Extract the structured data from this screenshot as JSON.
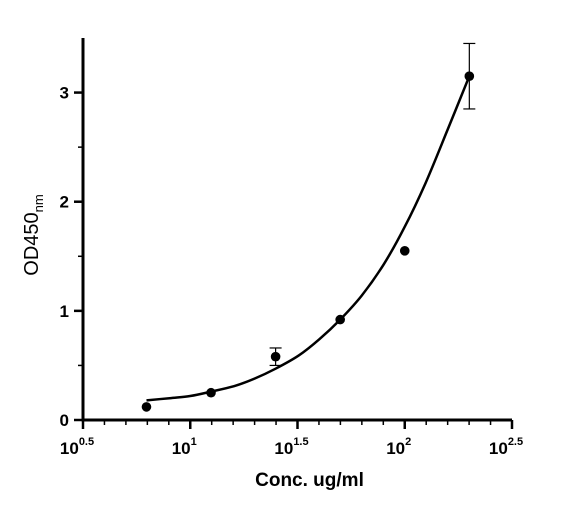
{
  "chart_data": {
    "type": "scatter",
    "title": "",
    "xlabel": "Conc. ug/ml",
    "ylabel": {
      "main": "OD450",
      "sub": "nm"
    },
    "x_scale": "log10",
    "xlim": [
      3.1623,
      316.23
    ],
    "ylim": [
      0,
      3.5
    ],
    "x_ticks": [
      {
        "value": 3.1623,
        "base": "10",
        "exp": "0.5"
      },
      {
        "value": 10,
        "base": "10",
        "exp": "1"
      },
      {
        "value": 31.623,
        "base": "10",
        "exp": "1.5"
      },
      {
        "value": 100,
        "base": "10",
        "exp": "2"
      },
      {
        "value": 316.23,
        "base": "10",
        "exp": "2.5"
      }
    ],
    "y_ticks": [
      {
        "value": 0,
        "label": "0"
      },
      {
        "value": 1,
        "label": "1"
      },
      {
        "value": 2,
        "label": "2"
      },
      {
        "value": 3,
        "label": "3"
      }
    ],
    "grid": false,
    "series": [
      {
        "points": [
          {
            "x": 6.25,
            "y": 0.12
          },
          {
            "x": 12.5,
            "y": 0.25
          },
          {
            "x": 25,
            "y": 0.58,
            "err": 0.08
          },
          {
            "x": 50,
            "y": 0.92
          },
          {
            "x": 100,
            "y": 1.55
          },
          {
            "x": 200,
            "y": 3.15,
            "err": 0.3
          }
        ],
        "fit_curve": [
          {
            "x": 6.25,
            "y": 0.18
          },
          {
            "x": 8,
            "y": 0.2
          },
          {
            "x": 10,
            "y": 0.22
          },
          {
            "x": 12.5,
            "y": 0.26
          },
          {
            "x": 16,
            "y": 0.31
          },
          {
            "x": 20,
            "y": 0.38
          },
          {
            "x": 25,
            "y": 0.47
          },
          {
            "x": 32,
            "y": 0.59
          },
          {
            "x": 40,
            "y": 0.74
          },
          {
            "x": 50,
            "y": 0.92
          },
          {
            "x": 63,
            "y": 1.14
          },
          {
            "x": 80,
            "y": 1.43
          },
          {
            "x": 100,
            "y": 1.77
          },
          {
            "x": 125,
            "y": 2.17
          },
          {
            "x": 160,
            "y": 2.68
          },
          {
            "x": 200,
            "y": 3.15
          }
        ],
        "color": "#000000"
      }
    ]
  }
}
